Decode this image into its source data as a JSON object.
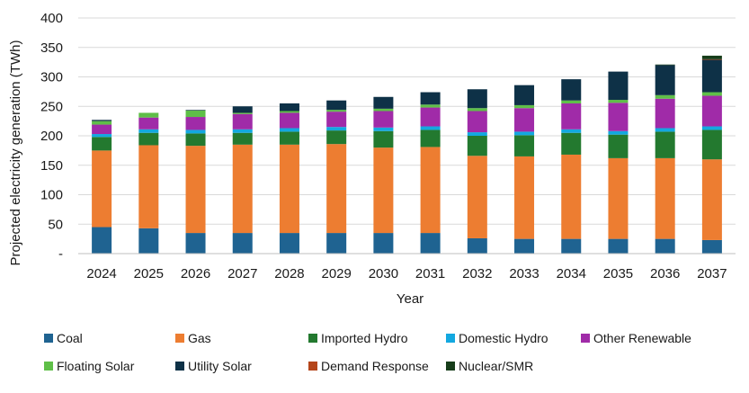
{
  "chart_data": {
    "type": "bar",
    "stacked": true,
    "xlabel": "Year",
    "ylabel": "Projected electricity generation (TWh)",
    "ylim": [
      0,
      400
    ],
    "yticks": [
      0,
      50,
      100,
      150,
      200,
      250,
      300,
      350,
      400
    ],
    "ytick_labels": [
      "-",
      "50",
      "100",
      "150",
      "200",
      "250",
      "300",
      "350",
      "400"
    ],
    "grid": true,
    "legend_position": "bottom",
    "categories": [
      "2024",
      "2025",
      "2026",
      "2027",
      "2028",
      "2029",
      "2030",
      "2031",
      "2032",
      "2033",
      "2034",
      "2035",
      "2036",
      "2037"
    ],
    "series": [
      {
        "name": "Coal",
        "color": "#1f6391",
        "values": [
          45,
          43,
          35,
          35,
          35,
          35,
          35,
          35,
          26,
          25,
          25,
          25,
          25,
          23
        ]
      },
      {
        "name": "Gas",
        "color": "#ed7d31",
        "values": [
          130,
          141,
          148,
          150,
          150,
          151,
          145,
          146,
          140,
          140,
          143,
          137,
          137,
          137
        ]
      },
      {
        "name": "Imported Hydro",
        "color": "#23792f",
        "values": [
          23,
          21,
          21,
          20,
          22,
          23,
          28,
          29,
          34,
          36,
          37,
          40,
          45,
          50
        ]
      },
      {
        "name": "Domestic Hydro",
        "color": "#13a8e0",
        "values": [
          5,
          6,
          6,
          6,
          6,
          6,
          6,
          6,
          6,
          6,
          6,
          6,
          6,
          6
        ]
      },
      {
        "name": "Other Renewable",
        "color": "#a02ba8",
        "values": [
          16,
          20,
          22,
          26,
          26,
          26,
          28,
          32,
          36,
          40,
          44,
          48,
          50,
          52
        ]
      },
      {
        "name": "Floating Solar",
        "color": "#5fbf48",
        "values": [
          6,
          8,
          11,
          2,
          3,
          3,
          4,
          5,
          5,
          5,
          5,
          5,
          6,
          6
        ]
      },
      {
        "name": "Utility Solar",
        "color": "#0e3147",
        "values": [
          2,
          0,
          1,
          11,
          13,
          16,
          20,
          21,
          32,
          34,
          36,
          48,
          51,
          55
        ]
      },
      {
        "name": "Demand Response",
        "color": "#b5451a",
        "values": [
          0,
          0,
          0,
          0,
          0,
          0,
          0,
          0,
          0,
          0,
          0,
          0,
          0,
          1
        ]
      },
      {
        "name": "Nuclear/SMR",
        "color": "#173d1a",
        "values": [
          0,
          0,
          0,
          0,
          0,
          0,
          0,
          0,
          0,
          0,
          0,
          0,
          1,
          6
        ]
      }
    ]
  }
}
